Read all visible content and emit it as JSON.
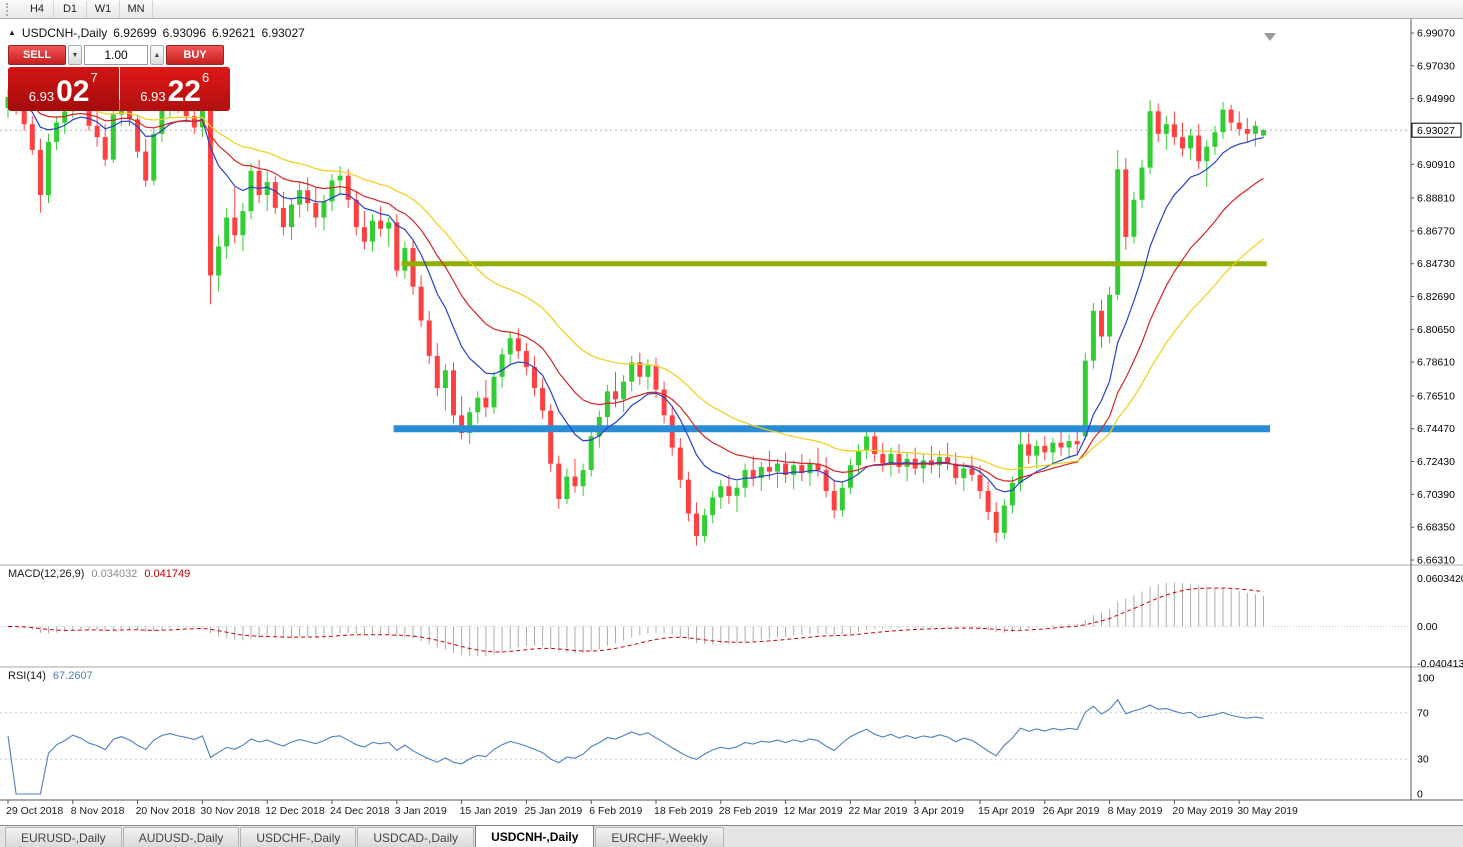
{
  "toolbar": {
    "timeframes": [
      "H4",
      "D1",
      "W1",
      "MN"
    ]
  },
  "icons": {
    "panel_toggle": "▲",
    "volume_decrease": "▼",
    "volume_increase": "▲"
  },
  "chart_header": {
    "symbol": "USDCNH-,Daily",
    "open": "6.92699",
    "high": "6.93096",
    "low": "6.92621",
    "close": "6.93027"
  },
  "trade_panel": {
    "sell_label": "SELL",
    "buy_label": "BUY",
    "volume": "1.00",
    "sell_price": {
      "prefix": "6.93",
      "pips": "02",
      "point": "7"
    },
    "buy_price": {
      "prefix": "6.93",
      "pips": "22",
      "point": "6"
    }
  },
  "indicator_labels": {
    "macd": {
      "name": "MACD(12,26,9)",
      "value_main": "0.034032",
      "value_signal": "0.041749"
    },
    "rsi": {
      "name": "RSI(14)",
      "value": "67.2607"
    }
  },
  "tabs": [
    {
      "label": "EURUSD-,Daily",
      "active": false
    },
    {
      "label": "AUDUSD-,Daily",
      "active": false
    },
    {
      "label": "USDCHF-,Daily",
      "active": false
    },
    {
      "label": "USDCAD-,Daily",
      "active": false
    },
    {
      "label": "USDCNH-,Daily",
      "active": true
    },
    {
      "label": "EURCHF-,Weekly",
      "active": false
    }
  ],
  "chart_data": {
    "type": "candlestick",
    "title": "USDCNH-,Daily",
    "current_price": 6.93027,
    "current_price_label": "6.93027",
    "price_ticks": [
      "6.99070",
      "6.97030",
      "6.94990",
      "6.90910",
      "6.88810",
      "6.86770",
      "6.84730",
      "6.82690",
      "6.80650",
      "6.78610",
      "6.76510",
      "6.74470",
      "6.72430",
      "6.70390",
      "6.68350",
      "6.66310"
    ],
    "date_labels": [
      "29 Oct 2018",
      "8 Nov 2018",
      "20 Nov 2018",
      "30 Nov 2018",
      "12 Dec 2018",
      "24 Dec 2018",
      "3 Jan 2019",
      "15 Jan 2019",
      "25 Jan 2019",
      "6 Feb 2019",
      "18 Feb 2019",
      "28 Feb 2019",
      "12 Mar 2019",
      "22 Mar 2019",
      "3 Apr 2019",
      "15 Apr 2019",
      "26 Apr 2019",
      "8 May 2019",
      "20 May 2019",
      "30 May 2019"
    ],
    "label_step": 8,
    "colors": {
      "up": "#32CD32",
      "down": "#FF4040",
      "macd_hist": "#ABABAB",
      "macd_signal": "#D00000",
      "rsi": "#4C7FC0"
    },
    "hlines": [
      {
        "price": 6.8473,
        "color": "#8FAE00",
        "width": 5,
        "from": 48.6,
        "to": 155.4
      },
      {
        "price": 6.7447,
        "color": "#2B8CD6",
        "width": 7,
        "from": 47.6,
        "to": 155.8
      }
    ],
    "moving_averages": [
      {
        "period": 10,
        "color": "#2841C8"
      },
      {
        "period": 20,
        "color": "#D42424"
      },
      {
        "period": 35,
        "color": "#F2CE16"
      }
    ],
    "macd": {
      "fast": 12,
      "slow": 26,
      "signal": 9,
      "axis_labels": [
        "0.0603420",
        "0.00",
        "-0.0404130"
      ],
      "scale_max": 0.060342,
      "scale_min": -0.040413
    },
    "rsi": {
      "period": 14,
      "levels": [
        "100",
        "70",
        "30",
        "0"
      ]
    },
    "ohlc": [
      [
        6.944,
        6.956,
        6.938,
        6.951
      ],
      [
        6.951,
        6.958,
        6.94,
        6.943
      ],
      [
        6.943,
        6.95,
        6.93,
        6.934
      ],
      [
        6.934,
        6.939,
        6.915,
        6.918
      ],
      [
        6.918,
        6.925,
        6.879,
        6.89
      ],
      [
        6.89,
        6.928,
        6.885,
        6.923
      ],
      [
        6.923,
        6.939,
        6.918,
        6.935
      ],
      [
        6.935,
        6.946,
        6.928,
        6.942
      ],
      [
        6.942,
        6.956,
        6.938,
        6.953
      ],
      [
        6.953,
        6.958,
        6.943,
        6.946
      ],
      [
        6.946,
        6.955,
        6.93,
        6.933
      ],
      [
        6.933,
        6.942,
        6.92,
        6.926
      ],
      [
        6.926,
        6.934,
        6.908,
        6.912
      ],
      [
        6.912,
        6.944,
        6.91,
        6.94
      ],
      [
        6.94,
        6.953,
        6.933,
        6.949
      ],
      [
        6.949,
        6.956,
        6.933,
        6.937
      ],
      [
        6.937,
        6.94,
        6.913,
        6.917
      ],
      [
        6.917,
        6.925,
        6.895,
        6.899
      ],
      [
        6.899,
        6.932,
        6.896,
        6.928
      ],
      [
        6.928,
        6.949,
        6.923,
        6.945
      ],
      [
        6.945,
        6.956,
        6.938,
        6.952
      ],
      [
        6.952,
        6.957,
        6.941,
        6.944
      ],
      [
        6.944,
        6.952,
        6.935,
        6.939
      ],
      [
        6.939,
        6.945,
        6.928,
        6.932
      ],
      [
        6.932,
        6.946,
        6.926,
        6.943
      ],
      [
        6.943,
        6.945,
        6.822,
        6.84
      ],
      [
        6.84,
        6.865,
        6.83,
        6.858
      ],
      [
        6.858,
        6.882,
        6.85,
        6.876
      ],
      [
        6.876,
        6.895,
        6.86,
        6.865
      ],
      [
        6.865,
        6.885,
        6.855,
        6.88
      ],
      [
        6.88,
        6.91,
        6.875,
        6.905
      ],
      [
        6.905,
        6.912,
        6.885,
        6.89
      ],
      [
        6.89,
        6.905,
        6.88,
        6.898
      ],
      [
        6.898,
        6.902,
        6.878,
        6.882
      ],
      [
        6.882,
        6.892,
        6.865,
        6.87
      ],
      [
        6.87,
        6.888,
        6.862,
        6.884
      ],
      [
        6.884,
        6.898,
        6.876,
        6.893
      ],
      [
        6.893,
        6.901,
        6.88,
        6.885
      ],
      [
        6.885,
        6.895,
        6.87,
        6.876
      ],
      [
        6.876,
        6.89,
        6.868,
        6.886
      ],
      [
        6.886,
        6.903,
        6.88,
        6.899
      ],
      [
        6.899,
        6.908,
        6.89,
        6.902
      ],
      [
        6.902,
        6.906,
        6.882,
        6.887
      ],
      [
        6.887,
        6.892,
        6.865,
        6.87
      ],
      [
        6.87,
        6.88,
        6.856,
        6.861
      ],
      [
        6.861,
        6.878,
        6.855,
        6.874
      ],
      [
        6.874,
        6.883,
        6.864,
        6.869
      ],
      [
        6.869,
        6.876,
        6.858,
        6.873
      ],
      [
        6.873,
        6.878,
        6.839,
        6.843
      ],
      [
        6.843,
        6.861,
        6.838,
        6.857
      ],
      [
        6.857,
        6.862,
        6.828,
        6.833
      ],
      [
        6.833,
        6.84,
        6.808,
        6.812
      ],
      [
        6.812,
        6.818,
        6.785,
        6.79
      ],
      [
        6.79,
        6.798,
        6.765,
        6.77
      ],
      [
        6.77,
        6.785,
        6.756,
        6.781
      ],
      [
        6.781,
        6.786,
        6.748,
        6.753
      ],
      [
        6.753,
        6.765,
        6.738,
        6.742
      ],
      [
        6.742,
        6.758,
        6.735,
        6.755
      ],
      [
        6.755,
        6.768,
        6.748,
        6.764
      ],
      [
        6.764,
        6.775,
        6.752,
        6.758
      ],
      [
        6.758,
        6.78,
        6.754,
        6.777
      ],
      [
        6.777,
        6.795,
        6.77,
        6.791
      ],
      [
        6.791,
        6.805,
        6.784,
        6.801
      ],
      [
        6.801,
        6.807,
        6.788,
        6.793
      ],
      [
        6.793,
        6.798,
        6.778,
        6.783
      ],
      [
        6.783,
        6.79,
        6.765,
        6.77
      ],
      [
        6.77,
        6.776,
        6.751,
        6.756
      ],
      [
        6.756,
        6.76,
        6.718,
        6.723
      ],
      [
        6.723,
        6.728,
        6.695,
        6.701
      ],
      [
        6.701,
        6.72,
        6.698,
        6.715
      ],
      [
        6.715,
        6.726,
        6.705,
        6.709
      ],
      [
        6.709,
        6.723,
        6.703,
        6.719
      ],
      [
        6.719,
        6.744,
        6.715,
        6.74
      ],
      [
        6.74,
        6.756,
        6.733,
        6.752
      ],
      [
        6.752,
        6.772,
        6.746,
        6.768
      ],
      [
        6.768,
        6.78,
        6.758,
        6.763
      ],
      [
        6.763,
        6.778,
        6.755,
        6.774
      ],
      [
        6.774,
        6.79,
        6.768,
        6.786
      ],
      [
        6.786,
        6.792,
        6.772,
        6.777
      ],
      [
        6.777,
        6.788,
        6.769,
        6.784
      ],
      [
        6.784,
        6.789,
        6.764,
        6.769
      ],
      [
        6.769,
        6.774,
        6.748,
        6.753
      ],
      [
        6.753,
        6.758,
        6.728,
        6.733
      ],
      [
        6.733,
        6.739,
        6.708,
        6.713
      ],
      [
        6.713,
        6.718,
        6.687,
        6.692
      ],
      [
        6.692,
        6.699,
        6.672,
        6.678
      ],
      [
        6.678,
        6.695,
        6.674,
        6.691
      ],
      [
        6.691,
        6.706,
        6.686,
        6.702
      ],
      [
        6.702,
        6.713,
        6.695,
        6.709
      ],
      [
        6.709,
        6.716,
        6.698,
        6.703
      ],
      [
        6.703,
        6.712,
        6.693,
        6.708
      ],
      [
        6.708,
        6.723,
        6.702,
        6.719
      ],
      [
        6.719,
        6.728,
        6.709,
        6.714
      ],
      [
        6.714,
        6.724,
        6.706,
        6.721
      ],
      [
        6.721,
        6.731,
        6.713,
        6.718
      ],
      [
        6.718,
        6.726,
        6.708,
        6.723
      ],
      [
        6.723,
        6.73,
        6.711,
        6.716
      ],
      [
        6.716,
        6.725,
        6.707,
        6.722
      ],
      [
        6.722,
        6.729,
        6.712,
        6.717
      ],
      [
        6.717,
        6.726,
        6.709,
        6.723
      ],
      [
        6.723,
        6.733,
        6.715,
        6.719
      ],
      [
        6.719,
        6.727,
        6.702,
        6.706
      ],
      [
        6.706,
        6.713,
        6.689,
        6.694
      ],
      [
        6.694,
        6.712,
        6.69,
        6.708
      ],
      [
        6.708,
        6.726,
        6.704,
        6.722
      ],
      [
        6.722,
        6.735,
        6.717,
        6.731
      ],
      [
        6.731,
        6.746,
        6.726,
        6.74
      ],
      [
        6.74,
        6.744,
        6.724,
        6.729
      ],
      [
        6.729,
        6.736,
        6.718,
        6.723
      ],
      [
        6.723,
        6.733,
        6.715,
        6.729
      ],
      [
        6.729,
        6.735,
        6.717,
        6.721
      ],
      [
        6.721,
        6.73,
        6.712,
        6.726
      ],
      [
        6.726,
        6.733,
        6.716,
        6.72
      ],
      [
        6.72,
        6.729,
        6.711,
        6.725
      ],
      [
        6.725,
        6.734,
        6.717,
        6.722
      ],
      [
        6.722,
        6.731,
        6.714,
        6.727
      ],
      [
        6.727,
        6.736,
        6.719,
        6.723
      ],
      [
        6.723,
        6.73,
        6.71,
        6.714
      ],
      [
        6.714,
        6.724,
        6.706,
        6.72
      ],
      [
        6.72,
        6.728,
        6.712,
        6.716
      ],
      [
        6.716,
        6.722,
        6.701,
        6.706
      ],
      [
        6.706,
        6.712,
        6.688,
        6.693
      ],
      [
        6.693,
        6.699,
        6.674,
        6.68
      ],
      [
        6.68,
        6.701,
        6.676,
        6.697
      ],
      [
        6.697,
        6.715,
        6.692,
        6.711
      ],
      [
        6.711,
        6.745,
        6.706,
        6.735
      ],
      [
        6.735,
        6.742,
        6.723,
        6.728
      ],
      [
        6.728,
        6.738,
        6.72,
        6.734
      ],
      [
        6.734,
        6.74,
        6.725,
        6.73
      ],
      [
        6.73,
        6.739,
        6.722,
        6.736
      ],
      [
        6.736,
        6.744,
        6.728,
        6.733
      ],
      [
        6.733,
        6.741,
        6.726,
        6.737
      ],
      [
        6.737,
        6.743,
        6.729,
        6.735
      ],
      [
        6.74,
        6.792,
        6.738,
        6.787
      ],
      [
        6.787,
        6.823,
        6.782,
        6.818
      ],
      [
        6.818,
        6.825,
        6.795,
        6.802
      ],
      [
        6.802,
        6.833,
        6.798,
        6.828
      ],
      [
        6.828,
        6.918,
        6.825,
        6.906
      ],
      [
        6.906,
        6.913,
        6.856,
        6.864
      ],
      [
        6.864,
        6.892,
        6.86,
        6.887
      ],
      [
        6.887,
        6.912,
        6.882,
        6.907
      ],
      [
        6.907,
        6.949,
        6.903,
        6.942
      ],
      [
        6.942,
        6.947,
        6.923,
        6.928
      ],
      [
        6.928,
        6.939,
        6.918,
        6.934
      ],
      [
        6.934,
        6.942,
        6.921,
        6.926
      ],
      [
        6.926,
        6.935,
        6.914,
        6.919
      ],
      [
        6.919,
        6.931,
        6.912,
        6.927
      ],
      [
        6.927,
        6.934,
        6.906,
        6.911
      ],
      [
        6.911,
        6.924,
        6.895,
        6.92
      ],
      [
        6.92,
        6.933,
        6.915,
        6.929
      ],
      [
        6.929,
        6.948,
        6.925,
        6.943
      ],
      [
        6.943,
        6.946,
        6.93,
        6.935
      ],
      [
        6.935,
        6.942,
        6.927,
        6.931
      ],
      [
        6.931,
        6.938,
        6.923,
        6.928
      ],
      [
        6.928,
        6.936,
        6.92,
        6.933
      ],
      [
        6.92699,
        6.93096,
        6.92621,
        6.93027
      ]
    ]
  }
}
